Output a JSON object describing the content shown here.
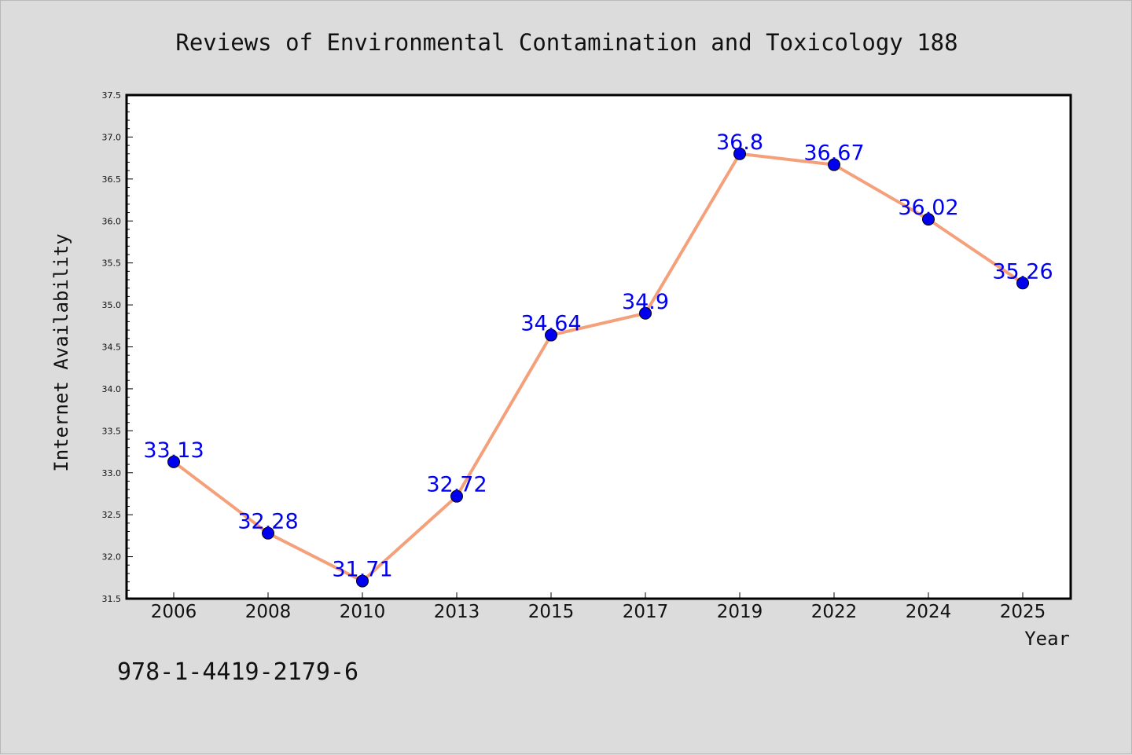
{
  "chart_data": {
    "type": "line",
    "title": "Reviews of Environmental Contamination and Toxicology 188",
    "xlabel": "Year",
    "ylabel": "Internet Availability",
    "categories": [
      "2006",
      "2008",
      "2010",
      "2013",
      "2015",
      "2017",
      "2019",
      "2022",
      "2024",
      "2025"
    ],
    "values": [
      33.13,
      32.28,
      31.71,
      32.72,
      34.64,
      34.9,
      36.8,
      36.67,
      36.02,
      35.26
    ],
    "data_labels": [
      "33.13",
      "32.28",
      "31.71",
      "32.72",
      "34.64",
      "34.9",
      "36.8",
      "36.67",
      "36.02",
      "35.26"
    ],
    "ylim": [
      31.5,
      37.5
    ],
    "yticks": [
      "31.5",
      "32.0",
      "32.5",
      "33.0",
      "33.5",
      "34.0",
      "34.5",
      "35.0",
      "35.5",
      "36.0",
      "36.5",
      "37.0",
      "37.5"
    ],
    "grid": false,
    "line_color": "#f4a07a",
    "marker_color": "#0000ee",
    "label_color": "#0000ee"
  },
  "footer_text": "978-1-4419-2179-6"
}
